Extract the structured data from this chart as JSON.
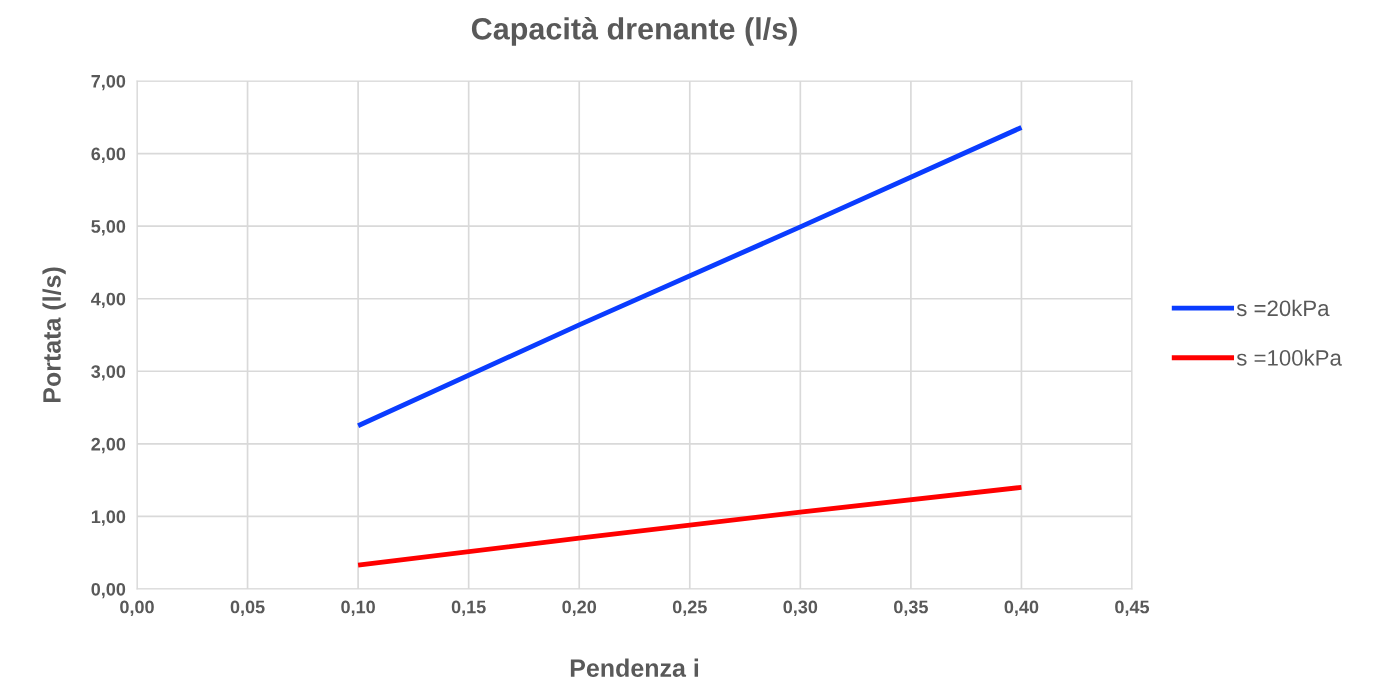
{
  "chart_data": {
    "type": "line",
    "title": "Capacità drenante (l/s)",
    "xlabel": "Pendenza i",
    "ylabel": "Portata (l/s)",
    "x": [
      0.1,
      0.2,
      0.3,
      0.4
    ],
    "series": [
      {
        "name": "s =20kPa",
        "color": "#0a3cff",
        "values": [
          2.25,
          3.64,
          4.99,
          6.36
        ]
      },
      {
        "name": "s =100kPa",
        "color": "#ff0000",
        "values": [
          0.33,
          0.7,
          1.06,
          1.4
        ]
      }
    ],
    "xlim": [
      0,
      0.45
    ],
    "xticks": [
      {
        "value": 0,
        "label": "0,00"
      },
      {
        "value": 0.05,
        "label": "0,05"
      },
      {
        "value": 0.1,
        "label": "0,10"
      },
      {
        "value": 0.15,
        "label": "0,15"
      },
      {
        "value": 0.2,
        "label": "0,20"
      },
      {
        "value": 0.25,
        "label": "0,25"
      },
      {
        "value": 0.3,
        "label": "0,30"
      },
      {
        "value": 0.35,
        "label": "0,35"
      },
      {
        "value": 0.4,
        "label": "0,40"
      },
      {
        "value": 0.45,
        "label": "0,45"
      }
    ],
    "ylim": [
      0,
      7
    ],
    "yticks": [
      {
        "value": 0,
        "label": "0,00"
      },
      {
        "value": 1,
        "label": "1,00"
      },
      {
        "value": 2,
        "label": "2,00"
      },
      {
        "value": 3,
        "label": "3,00"
      },
      {
        "value": 4,
        "label": "4,00"
      },
      {
        "value": 5,
        "label": "5,00"
      },
      {
        "value": 6,
        "label": "6,00"
      },
      {
        "value": 7,
        "label": "7,00"
      }
    ],
    "grid": true,
    "legend": "right",
    "marker": "none",
    "line_style": "solid"
  }
}
